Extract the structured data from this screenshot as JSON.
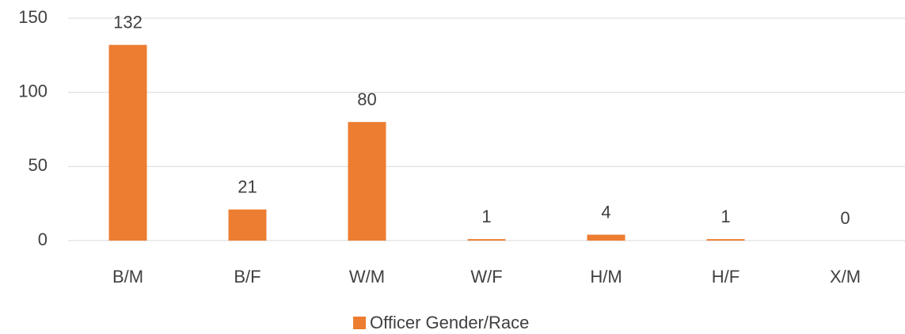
{
  "chart_data": {
    "type": "bar",
    "categories": [
      "B/M",
      "B/F",
      "W/M",
      "W/F",
      "H/M",
      "H/F",
      "X/M"
    ],
    "series": [
      {
        "name": "Officer Gender/Race",
        "color": "#ed7d31",
        "values": [
          132,
          21,
          80,
          1,
          4,
          1,
          0
        ]
      }
    ],
    "ylim": [
      0,
      150
    ],
    "yticks": [
      0,
      50,
      100,
      150
    ],
    "grid": true,
    "legend": "bottom",
    "data_labels": true
  }
}
